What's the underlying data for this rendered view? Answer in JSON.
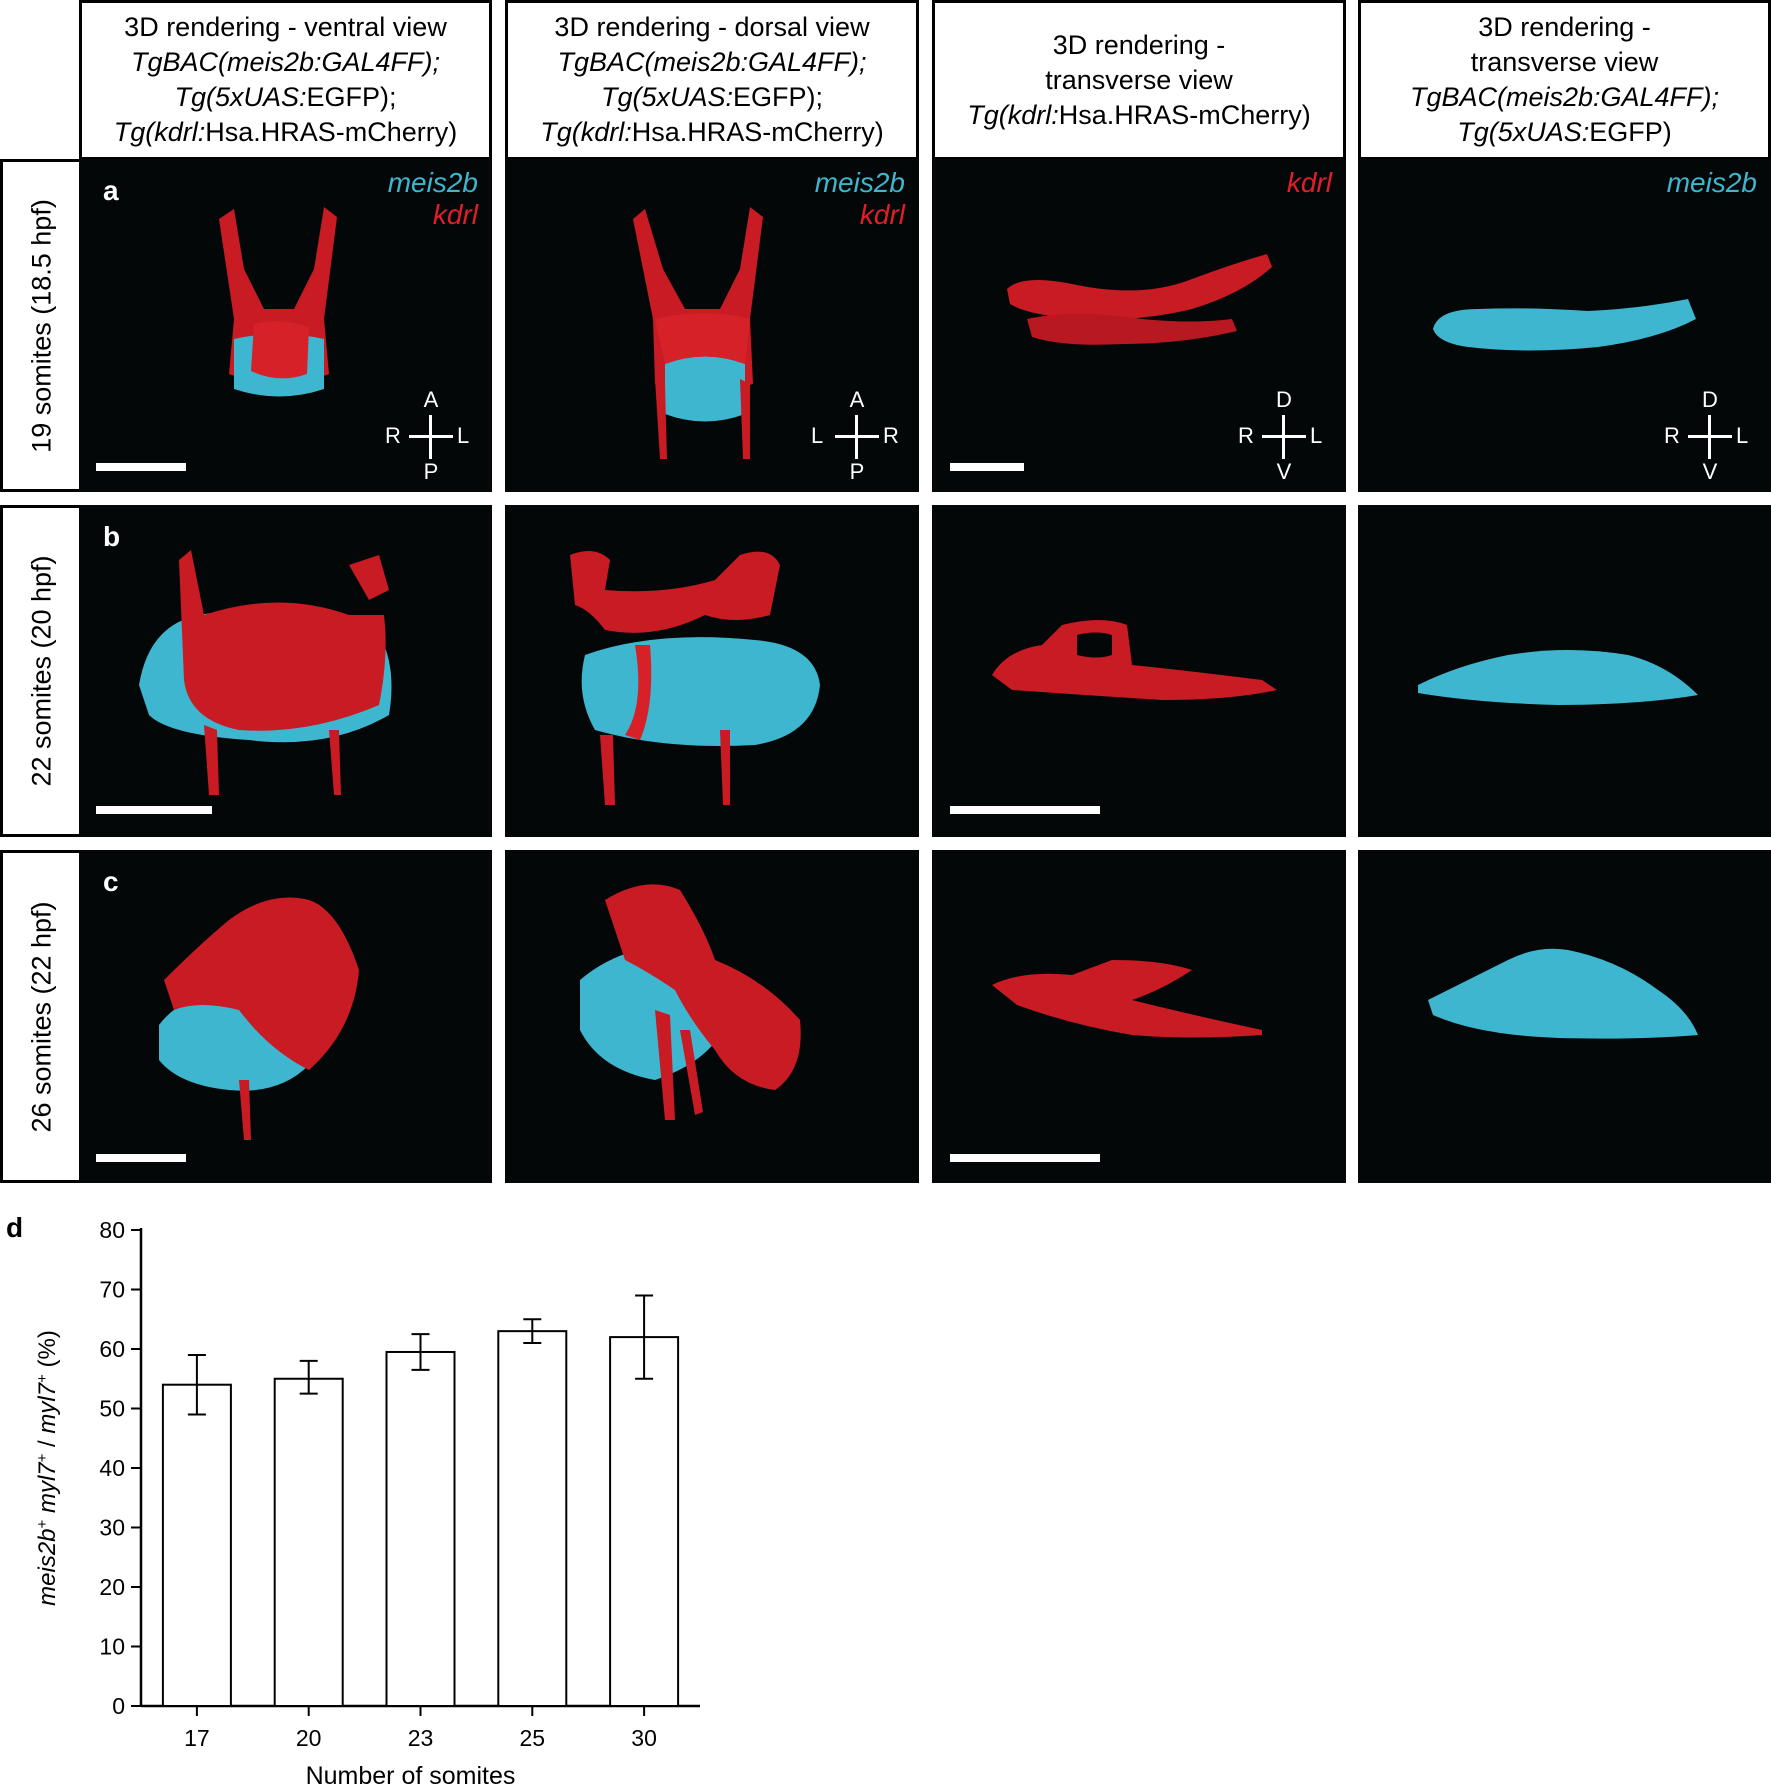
{
  "columns": [
    {
      "line1": "3D rendering - ventral view",
      "line2": "TgBAC(meis2b:GAL4FF);",
      "line3a": "Tg(5xUAS:",
      "line3b": "EGFP);",
      "line4a": "Tg(kdrl:",
      "line4b": "Hsa.HRAS-mCherry)"
    },
    {
      "line1": "3D rendering - dorsal view",
      "line2": "TgBAC(meis2b:GAL4FF);",
      "line3a": "Tg(5xUAS:",
      "line3b": "EGFP);",
      "line4a": "Tg(kdrl:",
      "line4b": "Hsa.HRAS-mCherry)"
    },
    {
      "line1": "3D rendering -",
      "line2": "transverse view",
      "line3a": "Tg(kdrl:",
      "line3b": "Hsa.HRAS-mCherry)"
    },
    {
      "line1": "3D rendering -",
      "line2": "transverse view",
      "line3": "TgBAC(meis2b:GAL4FF);",
      "line4a": "Tg(5xUAS:",
      "line4b": "EGFP)"
    }
  ],
  "rows": [
    {
      "label": "19 somites (18.5 hpf)",
      "letter": "a"
    },
    {
      "label": "22 somites (20 hpf)",
      "letter": "b"
    },
    {
      "label": "26 somites (22 hpf)",
      "letter": "c"
    }
  ],
  "legends": {
    "meis2b": "meis2b",
    "kdrl": "kdrl"
  },
  "axes": {
    "ventral": {
      "top": "A",
      "bottom": "P",
      "left": "R",
      "right": "L"
    },
    "dorsal": {
      "top": "A",
      "bottom": "P",
      "left": "L",
      "right": "R"
    },
    "transverse": {
      "top": "D",
      "bottom": "V",
      "left": "R",
      "right": "L"
    }
  },
  "colors": {
    "meis2b": "#3fb6cf",
    "kdrl": "#e11f26",
    "panel_bg": "#040708"
  },
  "chart_letter": "d",
  "chart_data": {
    "type": "bar",
    "categories": [
      "17",
      "20",
      "23",
      "25",
      "30"
    ],
    "values": [
      54,
      55,
      59.5,
      63,
      62
    ],
    "error_low": [
      49,
      52.5,
      56.5,
      61,
      55
    ],
    "error_high": [
      59,
      58,
      62.5,
      65,
      69
    ],
    "xlabel": "Number of somites",
    "ylabel_parts": [
      "meis2b",
      "+",
      " ",
      "myl7",
      "+",
      " / ",
      "myl7",
      "+",
      " (%)"
    ],
    "ylim": [
      0,
      80
    ],
    "yticks": [
      "0",
      "10",
      "20",
      "30",
      "40",
      "50",
      "60",
      "70",
      "80"
    ],
    "grid": false,
    "bar_color": "#ffffff"
  }
}
